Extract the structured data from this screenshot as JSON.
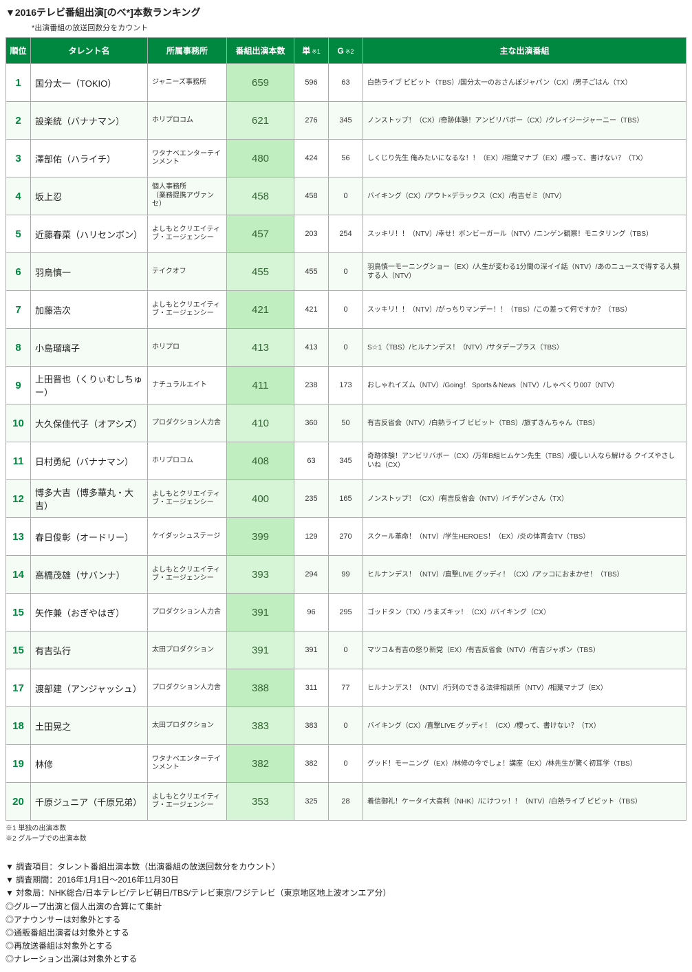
{
  "title": "▼2016テレビ番組出演[のべ*]本数ランキング",
  "subtitle": "*出演番組の放送回数分をカウント",
  "table": {
    "header_bg": "#008840",
    "header_fg": "#ffffff",
    "rank_color": "#008840",
    "total_bg_even": "#d6f5d6",
    "total_bg_odd": "#c1eec1",
    "row_even_bg": "#f5fbf5",
    "row_odd_bg": "#ffffff",
    "border_color": "#aaaaaa",
    "columns": [
      {
        "key": "rank",
        "label": "順位"
      },
      {
        "key": "name",
        "label": "タレント名"
      },
      {
        "key": "agency",
        "label": "所属事務所"
      },
      {
        "key": "total",
        "label": "番組出演本数"
      },
      {
        "key": "single",
        "label": "単",
        "note": "※1"
      },
      {
        "key": "group",
        "label": "G",
        "note": "※2"
      },
      {
        "key": "shows",
        "label": "主な出演番組"
      }
    ],
    "rows": [
      {
        "rank": 1,
        "name": "国分太一（TOKIO）",
        "agency": "ジャニーズ事務所",
        "total": 659,
        "single": 596,
        "group": 63,
        "shows": "白熱ライブ ビビット（TBS）/国分太一のおさんぽジャパン（CX）/男子ごはん（TX）"
      },
      {
        "rank": 2,
        "name": "設楽統（バナナマン）",
        "agency": "ホリプロコム",
        "total": 621,
        "single": 276,
        "group": 345,
        "shows": "ノンストップ！（CX）/奇跡体験！アンビリバボー（CX）/クレイジージャーニー（TBS）"
      },
      {
        "rank": 3,
        "name": "澤部佑（ハライチ）",
        "agency": "ワタナベエンターテインメント",
        "total": 480,
        "single": 424,
        "group": 56,
        "shows": "しくじり先生 俺みたいになるな！！（EX）/相葉マナブ（EX）/櫻って、書けない？（TX）"
      },
      {
        "rank": 4,
        "name": "坂上忍",
        "agency": "個人事務所\n（業務提携アヴァンセ）",
        "total": 458,
        "single": 458,
        "group": 0,
        "shows": "バイキング（CX）/アウト×デラックス（CX）/有吉ゼミ（NTV）"
      },
      {
        "rank": 5,
        "name": "近藤春菜（ハリセンボン）",
        "agency": "よしもとクリエイティブ・エージェンシー",
        "total": 457,
        "single": 203,
        "group": 254,
        "shows": "スッキリ！！（NTV）/幸せ！ボンビーガール（NTV）/ニンゲン観察！モニタリング（TBS）"
      },
      {
        "rank": 6,
        "name": "羽鳥慎一",
        "agency": "テイクオフ",
        "total": 455,
        "single": 455,
        "group": 0,
        "shows": "羽鳥慎一モーニングショー（EX）/人生が変わる1分間の深イイ話（NTV）/あのニュースで得する人損する人（NTV）"
      },
      {
        "rank": 7,
        "name": "加藤浩次",
        "agency": "よしもとクリエイティブ・エージェンシー",
        "total": 421,
        "single": 421,
        "group": 0,
        "shows": "スッキリ！！（NTV）/がっちりマンデー！！（TBS）/この差って何ですか？（TBS）"
      },
      {
        "rank": 8,
        "name": "小島瑠璃子",
        "agency": "ホリプロ",
        "total": 413,
        "single": 413,
        "group": 0,
        "shows": "S☆1（TBS）/ヒルナンデス！（NTV）/サタデープラス（TBS）"
      },
      {
        "rank": 9,
        "name": "上田晋也（くりぃむしちゅー）",
        "agency": "ナチュラルエイト",
        "total": 411,
        "single": 238,
        "group": 173,
        "shows": "おしゃれイズム（NTV）/Going！ Sports＆News（NTV）/しゃべくり007（NTV）"
      },
      {
        "rank": 10,
        "name": "大久保佳代子（オアシズ）",
        "agency": "プロダクション人力舎",
        "total": 410,
        "single": 360,
        "group": 50,
        "shows": "有吉反省会（NTV）/白熱ライブ ビビット（TBS）/旅ずきんちゃん（TBS）"
      },
      {
        "rank": 11,
        "name": "日村勇紀（バナナマン）",
        "agency": "ホリプロコム",
        "total": 408,
        "single": 63,
        "group": 345,
        "shows": "奇跡体験！アンビリバボー（CX）/万年B組ヒムケン先生（TBS）/優しい人なら解ける クイズやさしいね（CX）"
      },
      {
        "rank": 12,
        "name": "博多大吉（博多華丸・大吉）",
        "agency": "よしもとクリエイティブ・エージェンシー",
        "total": 400,
        "single": 235,
        "group": 165,
        "shows": "ノンストップ！（CX）/有吉反省会（NTV）/イチゲンさん（TX）"
      },
      {
        "rank": 13,
        "name": "春日俊彰（オードリー）",
        "agency": "ケイダッシュステージ",
        "total": 399,
        "single": 129,
        "group": 270,
        "shows": "スクール革命！（NTV）/学生HEROES！（EX）/炎の体育会TV（TBS）"
      },
      {
        "rank": 14,
        "name": "高橋茂雄（サバンナ）",
        "agency": "よしもとクリエイティブ・エージェンシー",
        "total": 393,
        "single": 294,
        "group": 99,
        "shows": "ヒルナンデス！（NTV）/直撃LIVE グッディ！（CX）/アッコにおまかせ！（TBS）"
      },
      {
        "rank": 15,
        "name": "矢作兼（おぎやはぎ）",
        "agency": "プロダクション人力舎",
        "total": 391,
        "single": 96,
        "group": 295,
        "shows": "ゴッドタン（TX）/うまズキッ！（CX）/バイキング（CX）"
      },
      {
        "rank": 15,
        "name": "有吉弘行",
        "agency": "太田プロダクション",
        "total": 391,
        "single": 391,
        "group": 0,
        "shows": "マツコ＆有吉の怒り新党（EX）/有吉反省会（NTV）/有吉ジャポン（TBS）"
      },
      {
        "rank": 17,
        "name": "渡部建（アンジャッシュ）",
        "agency": "プロダクション人力舎",
        "total": 388,
        "single": 311,
        "group": 77,
        "shows": "ヒルナンデス！（NTV）/行列のできる法律相談所（NTV）/相葉マナブ（EX）"
      },
      {
        "rank": 18,
        "name": "土田晃之",
        "agency": "太田プロダクション",
        "total": 383,
        "single": 383,
        "group": 0,
        "shows": "バイキング（CX）/直撃LIVE グッディ！（CX）/櫻って、書けない？（TX）"
      },
      {
        "rank": 19,
        "name": "林修",
        "agency": "ワタナベエンターテインメント",
        "total": 382,
        "single": 382,
        "group": 0,
        "shows": "グッド！モーニング（EX）/林修の今でしょ！講座（EX）/林先生が驚く初耳学（TBS）"
      },
      {
        "rank": 20,
        "name": "千原ジュニア（千原兄弟）",
        "agency": "よしもとクリエイティブ・エージェンシー",
        "total": 353,
        "single": 325,
        "group": 28,
        "shows": "着信御礼！ケータイ大喜利（NHK）/にけつッ！！（NTV）/白熱ライブ ビビット（TBS）"
      }
    ]
  },
  "footnotes": [
    "※1 単独の出演本数",
    "※2 グループでの出演本数"
  ],
  "notes": [
    "▼ 調査項目：タレント番組出演本数（出演番組の放送回数分をカウント）",
    "▼ 調査期間：2016年1月1日～2016年11月30日",
    "▼ 対象局：NHK総合/日本テレビ/テレビ朝日/TBS/テレビ東京/フジテレビ（東京地区地上波オンエア分）",
    "◎グループ出演と個人出演の合算にて集計",
    "◎アナウンサーは対象外とする",
    "◎通販番組出演者は対象外とする",
    "◎再放送番組は対象外とする",
    "◎ナレーション出演は対象外とする"
  ]
}
